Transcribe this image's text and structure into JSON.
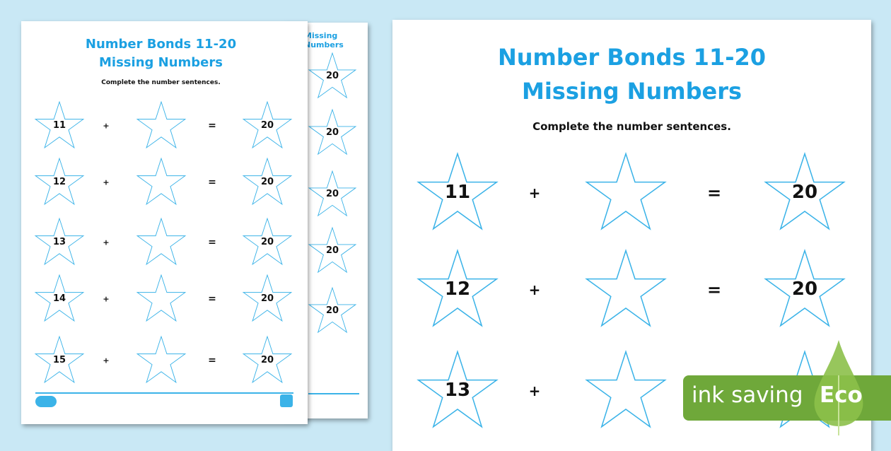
{
  "worksheet": {
    "title_line1": "Number Bonds 11-20",
    "title_line2": "Missing Numbers",
    "instruction": "Complete the number sentences.",
    "plus": "+",
    "equals": "=",
    "rows": [
      {
        "a": "11",
        "b": "",
        "total": "20"
      },
      {
        "a": "12",
        "b": "",
        "total": "20"
      },
      {
        "a": "13",
        "b": "",
        "total": "20"
      },
      {
        "a": "14",
        "b": "",
        "total": "20"
      },
      {
        "a": "15",
        "b": "",
        "total": "20"
      }
    ],
    "star_color": "#3bb3e8"
  },
  "eco_badge": {
    "label": "ink saving",
    "eco": "Eco",
    "color": "#6fa83a",
    "leaf_color": "#8cc04a"
  }
}
